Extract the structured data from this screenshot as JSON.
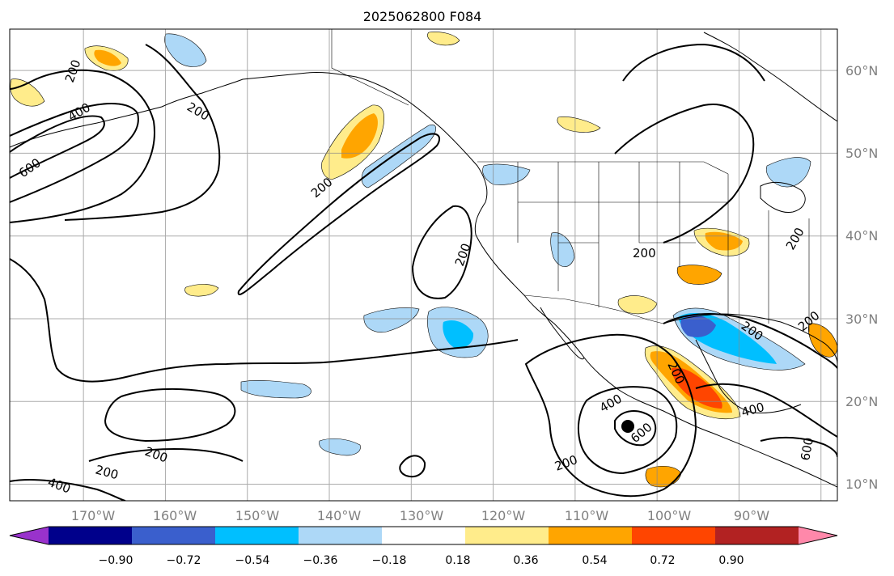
{
  "title": "2025062800 F084",
  "map": {
    "type": "contour-map",
    "projection": "PlateCarree",
    "extent": {
      "lon_min": -179,
      "lon_max": -78,
      "lat_min": 8,
      "lat_max": 65
    },
    "grid": true,
    "lat_labels": [
      "60°N",
      "50°N",
      "40°N",
      "30°N",
      "20°N",
      "10°N"
    ],
    "lon_labels": [
      "170°W",
      "160°W",
      "150°W",
      "140°W",
      "130°W",
      "120°W",
      "110°W",
      "100°W",
      "90°W"
    ],
    "contour_labels": [
      "200",
      "400",
      "600"
    ],
    "colors": {
      "grid": "#888888",
      "coast": "#000000",
      "contour": "#000000",
      "label_gray": "#808080"
    }
  },
  "colorbar": {
    "ticks": [
      "−0.90",
      "−0.72",
      "−0.54",
      "−0.36",
      "−0.18",
      "0.18",
      "0.36",
      "0.54",
      "0.72",
      "0.90"
    ],
    "colors": [
      "#9932cc",
      "#00008b",
      "#3a5fcd",
      "#00bfff",
      "#add8f7",
      "#ffffff",
      "#ffec8b",
      "#ffa500",
      "#ff4500",
      "#b22222",
      "#ff88aa"
    ],
    "extend": "both"
  }
}
